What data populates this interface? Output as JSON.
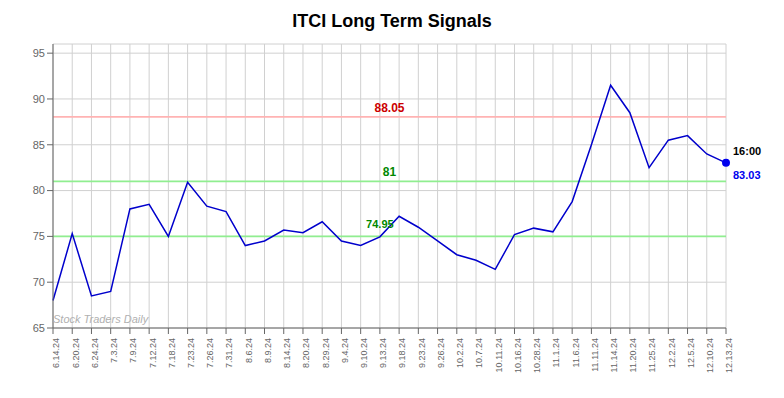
{
  "chart_data": {
    "type": "line",
    "title": "ITCI Long Term Signals",
    "categories": [
      "6.14.24",
      "6.20.24",
      "6.24.24",
      "7.3.24",
      "7.9.24",
      "7.12.24",
      "7.18.24",
      "7.23.24",
      "7.26.24",
      "7.31.24",
      "8.6.24",
      "8.9.24",
      "8.14.24",
      "8.20.24",
      "8.29.24",
      "9.4.24",
      "9.10.24",
      "9.13.24",
      "9.18.24",
      "9.23.24",
      "9.26.24",
      "10.2.24",
      "10.7.24",
      "10.11.24",
      "10.16.24",
      "10.28.24",
      "11.1.24",
      "11.6.24",
      "11.11.24",
      "11.14.24",
      "11.20.24",
      "11.25.24",
      "12.2.24",
      "12.5.24",
      "12.10.24",
      "12.13.24"
    ],
    "values": [
      68.0,
      75.3,
      68.5,
      69.0,
      78.0,
      78.5,
      75.0,
      80.9,
      78.3,
      77.7,
      74.0,
      74.5,
      75.7,
      75.4,
      76.6,
      74.5,
      74.0,
      74.95,
      77.2,
      76.0,
      74.5,
      73.0,
      72.4,
      71.4,
      75.2,
      75.9,
      75.5,
      78.8,
      85.0,
      91.5,
      88.5,
      82.5,
      85.5,
      86.0,
      84.0,
      83.03
    ],
    "color": "#0000cc",
    "ylim": [
      65,
      96
    ],
    "yticks": [
      65,
      70,
      75,
      80,
      85,
      90,
      95
    ],
    "grid": true,
    "reference_lines": [
      {
        "value": 88.05,
        "label": "88.05",
        "color": "#ffb3b3",
        "label_color": "#cc0000"
      },
      {
        "value": 81.0,
        "label": "81",
        "color": "#90ee90",
        "label_color": "#008800"
      },
      {
        "value": 75.0,
        "color": "#90ee90"
      }
    ],
    "annotations": [
      {
        "text": "74.95",
        "category": "9.13.24",
        "color": "#008800"
      },
      {
        "text": "16:00",
        "category": "12.13.24",
        "color": "#000000"
      },
      {
        "text": "83.03",
        "category": "12.13.24",
        "color": "#0000ee"
      }
    ],
    "end_point_color": "#0000ee",
    "watermark": "Stock Traders Daily"
  }
}
